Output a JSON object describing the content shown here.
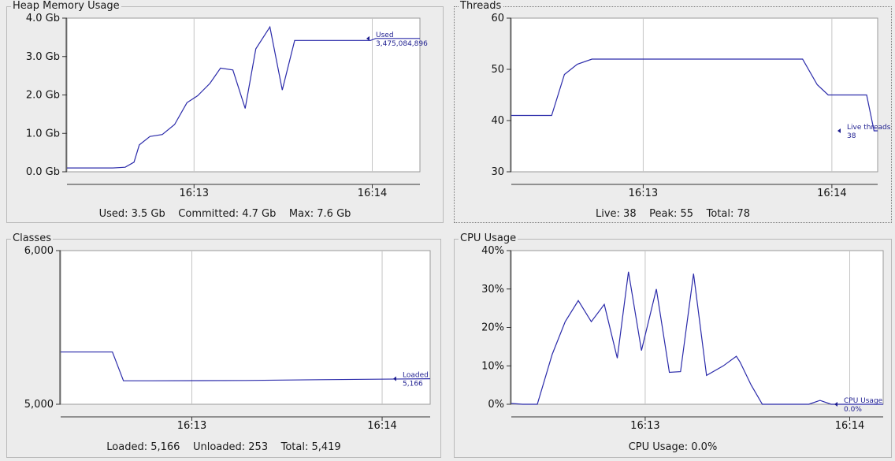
{
  "panels": {
    "heap": {
      "title": "Heap Memory Usage",
      "summary": "Used: 3.5 Gb    Committed: 4.7 Gb    Max: 7.6 Gb",
      "marker_label": "Used",
      "marker_value": "3,475,084,896",
      "y_ticks": [
        "4.0 Gb",
        "3.0 Gb",
        "2.0 Gb",
        "1.0 Gb",
        "0.0 Gb"
      ],
      "x_ticks": [
        "16:13",
        "16:14"
      ]
    },
    "threads": {
      "title": "Threads",
      "summary": "Live: 38    Peak: 55    Total: 78",
      "marker_label": "Live threads",
      "marker_value": "38",
      "y_ticks": [
        "60",
        "50",
        "40",
        "30"
      ],
      "x_ticks": [
        "16:13",
        "16:14"
      ]
    },
    "classes": {
      "title": "Classes",
      "summary": "Loaded: 5,166    Unloaded: 253    Total: 5,419",
      "marker_label": "Loaded",
      "marker_value": "5,166",
      "y_ticks": [
        "6,000",
        "5,000"
      ],
      "x_ticks": [
        "16:13",
        "16:14"
      ]
    },
    "cpu": {
      "title": "CPU Usage",
      "summary": "CPU Usage: 0.0%",
      "marker_label": "CPU Usage",
      "marker_value": "0.0%",
      "y_ticks": [
        "40%",
        "30%",
        "20%",
        "10%",
        "0%"
      ],
      "x_ticks": [
        "16:13",
        "16:14"
      ]
    }
  },
  "colors": {
    "line": "#2b2baa",
    "plot_bg": "#ffffff",
    "grid": "#c4c4c4",
    "marker": "#1d1d8f"
  },
  "chart_data": [
    {
      "id": "heap",
      "type": "line",
      "title": "Heap Memory Usage",
      "ylabel": "",
      "xlabel": "",
      "ylim": [
        0,
        4
      ],
      "xlim": [
        0,
        1
      ],
      "x_tick_positions": [
        0.36,
        0.865
      ],
      "series": [
        {
          "name": "Used",
          "x": [
            0,
            0.1,
            0.13,
            0.165,
            0.19,
            0.205,
            0.235,
            0.27,
            0.305,
            0.34,
            0.37,
            0.405,
            0.435,
            0.47,
            0.505,
            0.535,
            0.575,
            0.61,
            0.645,
            0.68,
            0.86,
            0.875,
            0.9,
            1.0
          ],
          "y": [
            0.1,
            0.1,
            0.1,
            0.12,
            0.25,
            0.7,
            0.92,
            0.97,
            1.23,
            1.8,
            1.98,
            2.3,
            2.7,
            2.65,
            1.65,
            3.2,
            3.77,
            2.13,
            3.42,
            3.42,
            3.42,
            3.47,
            3.47,
            3.47
          ]
        }
      ]
    },
    {
      "id": "threads",
      "type": "line",
      "title": "Threads",
      "ylabel": "",
      "xlabel": "",
      "ylim": [
        30,
        60
      ],
      "xlim": [
        0,
        1
      ],
      "x_tick_positions": [
        0.36,
        0.875
      ],
      "series": [
        {
          "name": "Live threads",
          "x": [
            0,
            0.11,
            0.145,
            0.18,
            0.22,
            0.5,
            0.795,
            0.835,
            0.865,
            0.97,
            0.99,
            1.0
          ],
          "y": [
            41,
            41,
            49,
            51,
            52,
            52,
            52,
            47,
            45,
            45,
            38,
            38
          ]
        }
      ]
    },
    {
      "id": "classes",
      "type": "line",
      "title": "Classes",
      "ylabel": "",
      "xlabel": "",
      "ylim": [
        5000,
        6000
      ],
      "xlim": [
        0,
        1
      ],
      "x_tick_positions": [
        0.355,
        0.87
      ],
      "series": [
        {
          "name": "Loaded",
          "x": [
            0,
            0.14,
            0.17,
            0.25,
            0.5,
            0.7,
            1.0
          ],
          "y": [
            5340,
            5340,
            5153,
            5153,
            5155,
            5160,
            5166
          ]
        }
      ]
    },
    {
      "id": "cpu",
      "type": "line",
      "title": "CPU Usage",
      "ylabel": "",
      "xlabel": "",
      "ylim": [
        0,
        40
      ],
      "xlim": [
        0,
        1
      ],
      "x_tick_positions": [
        0.36,
        0.91
      ],
      "series": [
        {
          "name": "CPU Usage",
          "x": [
            0,
            0.03,
            0.07,
            0.11,
            0.145,
            0.18,
            0.215,
            0.25,
            0.285,
            0.315,
            0.35,
            0.39,
            0.425,
            0.455,
            0.49,
            0.525,
            0.57,
            0.605,
            0.615,
            0.645,
            0.675,
            0.7,
            0.73,
            0.78,
            0.8,
            0.83,
            0.86,
            0.9,
            1.0
          ],
          "y": [
            0.2,
            0,
            0,
            13,
            21.5,
            27,
            21.5,
            26,
            12,
            34.5,
            14,
            30,
            8.3,
            8.5,
            34,
            7.5,
            10,
            12.5,
            11,
            5,
            0,
            0,
            0,
            0,
            0,
            1,
            0,
            0,
            0
          ]
        }
      ]
    }
  ]
}
